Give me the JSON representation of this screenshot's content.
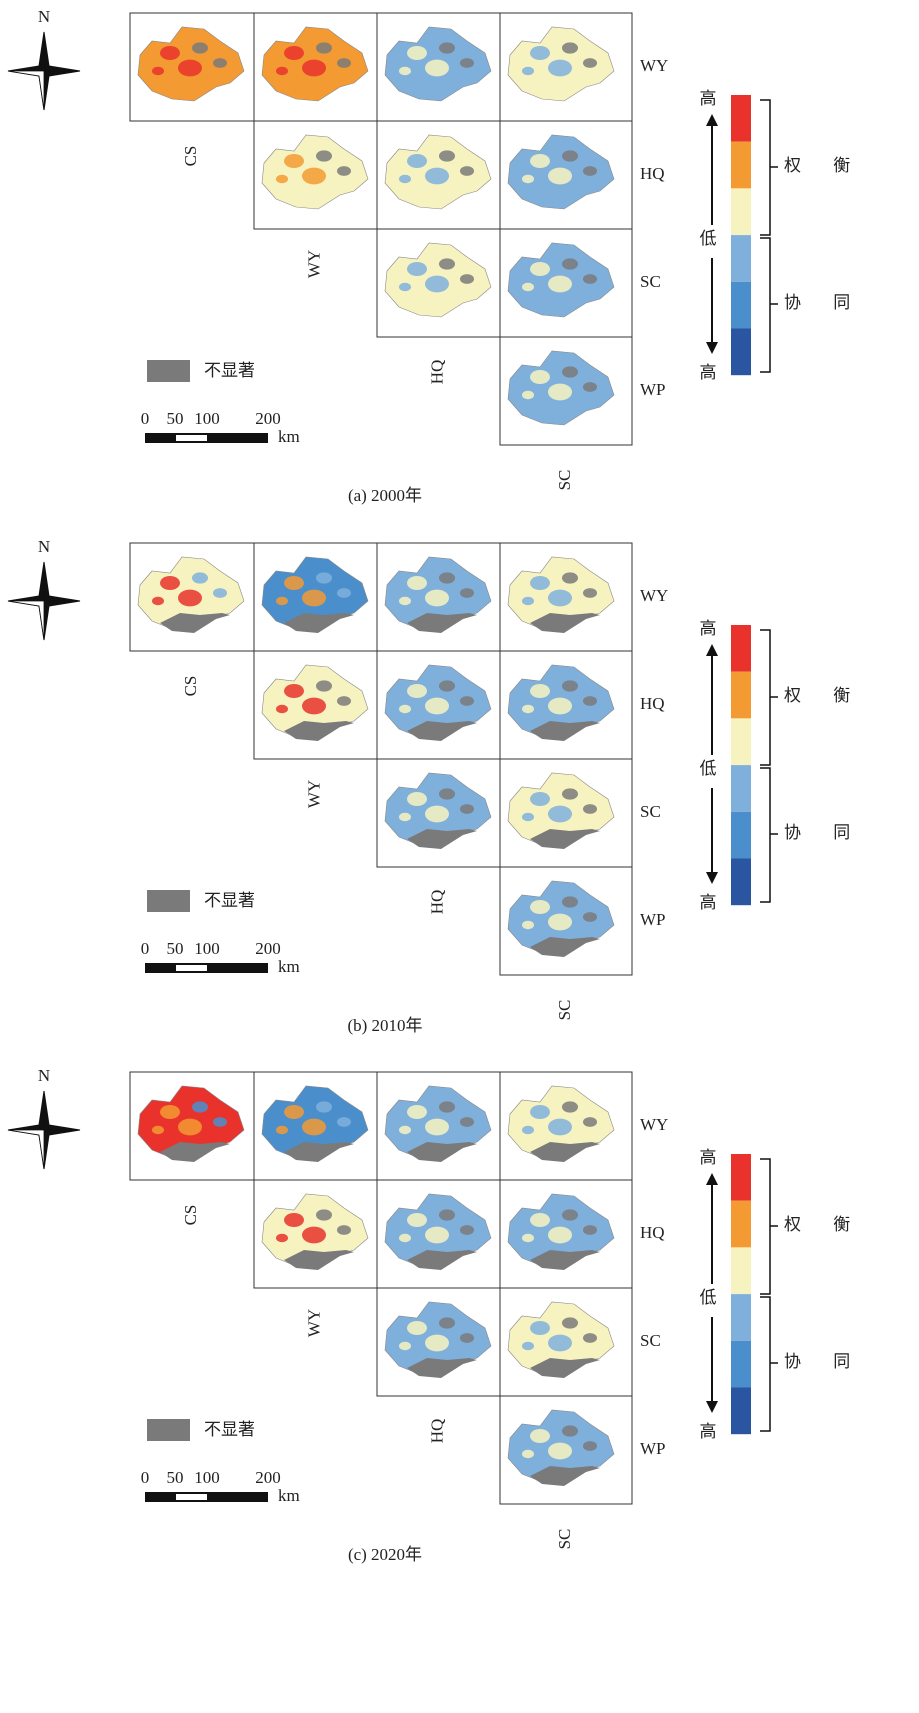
{
  "panels": [
    {
      "caption": "(a) 2000年",
      "row_labels": [
        "WY",
        "HQ",
        "SC",
        "WP"
      ],
      "column_labels": [
        "CS",
        "WY",
        "HQ",
        "SC"
      ]
    },
    {
      "caption": "(b) 2010年",
      "row_labels": [
        "WY",
        "HQ",
        "SC",
        "WP"
      ],
      "column_labels": [
        "CS",
        "WY",
        "HQ",
        "SC"
      ]
    },
    {
      "caption": "(c) 2020年",
      "row_labels": [
        "WY",
        "HQ",
        "SC",
        "WP"
      ],
      "column_labels": [
        "CS",
        "WY",
        "HQ",
        "SC"
      ]
    }
  ],
  "north": "N",
  "legend": {
    "high_top": "高",
    "low": "低",
    "high_bottom": "高",
    "tradeoff": "权 衡",
    "synergy": "协 同"
  },
  "not_significant": "不显著",
  "scale": {
    "ticks": [
      0,
      50,
      100,
      200
    ],
    "unit": "km"
  }
}
